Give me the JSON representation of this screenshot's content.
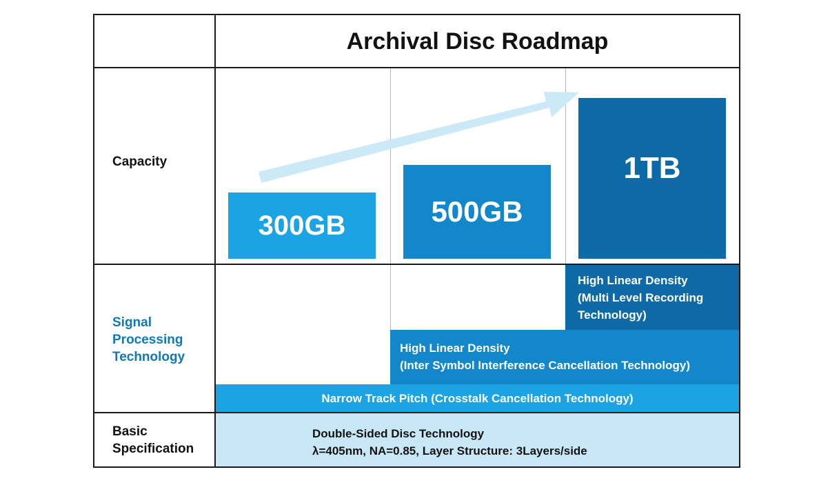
{
  "title": "Archival Disc Roadmap",
  "rows": {
    "capacity": "Capacity",
    "signal": "Signal\nProcessing\nTechnology",
    "basic": "Basic\nSpecification"
  },
  "capacities": [
    {
      "label": "300GB",
      "color": "#1ba3e3"
    },
    {
      "label": "500GB",
      "color": "#1288ca"
    },
    {
      "label": "1TB",
      "color": "#0e6aa6"
    }
  ],
  "signal_bands": {
    "multi_level": [
      "High Linear Density",
      "(Multi Level Recording",
      "Technology)"
    ],
    "isi": [
      "High Linear Density",
      "(Inter Symbol Interference Cancellation Technology)"
    ],
    "narrow": "Narrow Track Pitch (Crosstalk Cancellation Technology)"
  },
  "basic_spec": [
    "Double-Sided Disc Technology",
    "λ=405nm, NA=0.85, Layer Structure: 3Layers/side"
  ],
  "colors": {
    "arrow": "#cce9f7",
    "multi_level": "#0e6aa6",
    "isi": "#1288ca",
    "narrow": "#1ba3e3",
    "basic_bg": "#c8e8f8",
    "signal_label": "#1278b4"
  }
}
